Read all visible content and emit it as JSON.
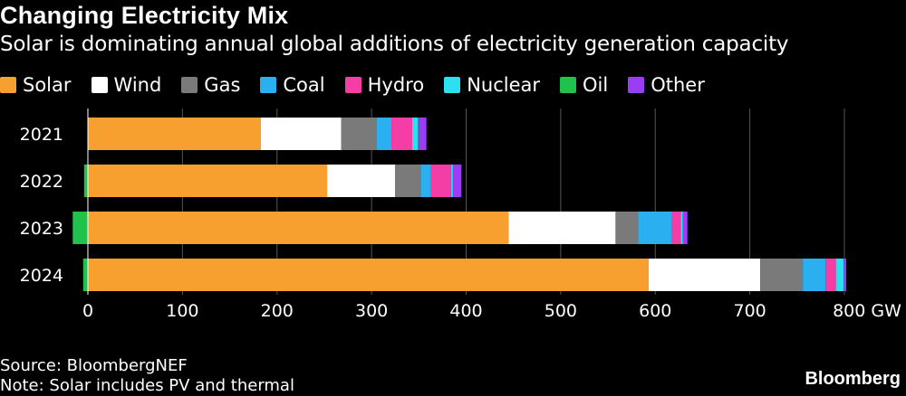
{
  "header": {
    "title": "Changing Electricity Mix",
    "subtitle": "Solar is dominating annual global additions of electricity generation capacity"
  },
  "legend": {
    "items": [
      {
        "label": "Solar",
        "color": "#F7A030"
      },
      {
        "label": "Wind",
        "color": "#FFFFFF"
      },
      {
        "label": "Gas",
        "color": "#7A7A7A"
      },
      {
        "label": "Coal",
        "color": "#2AAFF0"
      },
      {
        "label": "Hydro",
        "color": "#F53DA6"
      },
      {
        "label": "Nuclear",
        "color": "#2BE0F0"
      },
      {
        "label": "Oil",
        "color": "#1FC24A"
      },
      {
        "label": "Other",
        "color": "#9B3DF5"
      }
    ]
  },
  "chart_data": {
    "type": "bar",
    "orientation": "horizontal",
    "stacked": true,
    "categories": [
      "2021",
      "2022",
      "2023",
      "2024"
    ],
    "series": [
      {
        "name": "Solar",
        "color": "#F7A030",
        "values": [
          183,
          253,
          445,
          593
        ]
      },
      {
        "name": "Wind",
        "color": "#FFFFFF",
        "values": [
          85,
          72,
          113,
          118
        ]
      },
      {
        "name": "Gas",
        "color": "#7A7A7A",
        "values": [
          37,
          27,
          24,
          45
        ]
      },
      {
        "name": "Coal",
        "color": "#2AAFF0",
        "values": [
          16,
          11,
          35,
          24
        ]
      },
      {
        "name": "Hydro",
        "color": "#F53DA6",
        "values": [
          22,
          21,
          10,
          11
        ]
      },
      {
        "name": "Nuclear",
        "color": "#2BE0F0",
        "values": [
          6,
          2,
          2,
          8
        ]
      },
      {
        "name": "Oil",
        "color": "#1FC24A",
        "values": [
          1,
          -4,
          -16,
          -5
        ]
      },
      {
        "name": "Other",
        "color": "#9B3DF5",
        "values": [
          8,
          9,
          5,
          3
        ]
      }
    ],
    "xlim": [
      -17,
      805
    ],
    "x_ticks": [
      0,
      100,
      200,
      300,
      400,
      500,
      600,
      700,
      800
    ],
    "x_unit": "GW",
    "grid": true,
    "legend_position": "top"
  },
  "footer": {
    "source": "Source: BloombergNEF",
    "note": "Note: Solar includes PV and thermal",
    "brand": "Bloomberg"
  }
}
